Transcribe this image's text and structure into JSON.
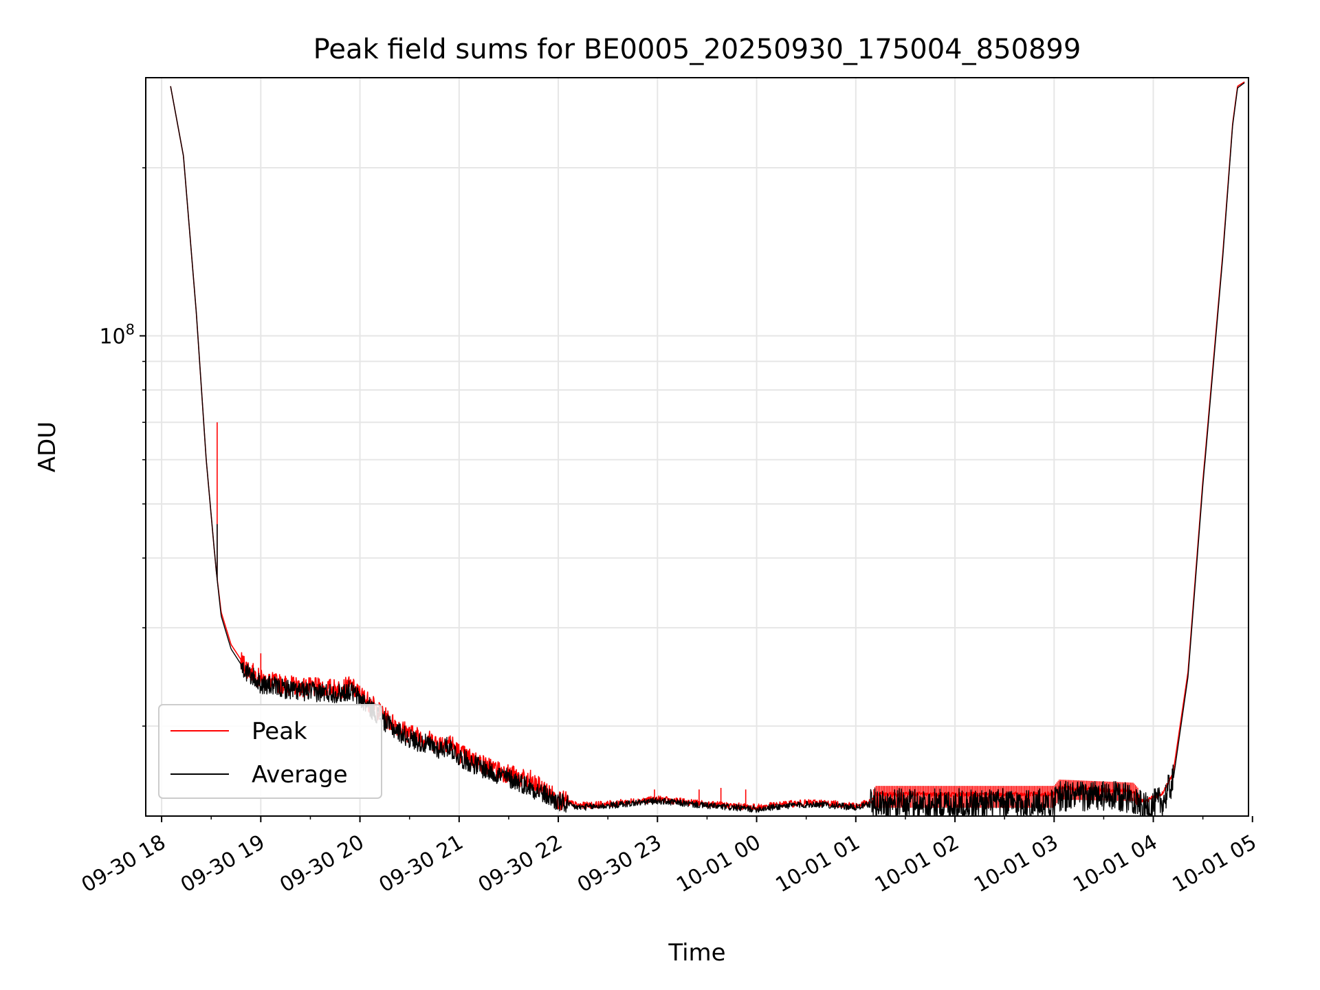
{
  "chart_data": {
    "type": "line",
    "title": "Peak field sums for BE0005_20250930_175004_850899",
    "xlabel": "Time",
    "ylabel": "ADU",
    "yscale": "log",
    "ylim": [
      13800000,
      290000000
    ],
    "xlim_hours": [
      -0.16,
      10.96
    ],
    "x_origin": "09-30 18:00",
    "grid": true,
    "legend_position": "lower-left",
    "x_ticks": [
      {
        "hour": 0,
        "label": "09-30 18"
      },
      {
        "hour": 1,
        "label": "09-30 19"
      },
      {
        "hour": 2,
        "label": "09-30 20"
      },
      {
        "hour": 3,
        "label": "09-30 21"
      },
      {
        "hour": 4,
        "label": "09-30 22"
      },
      {
        "hour": 5,
        "label": "09-30 23"
      },
      {
        "hour": 6,
        "label": "10-01 00"
      },
      {
        "hour": 7,
        "label": "10-01 01"
      },
      {
        "hour": 8,
        "label": "10-01 02"
      },
      {
        "hour": 9,
        "label": "10-01 03"
      },
      {
        "hour": 10,
        "label": "10-01 04"
      },
      {
        "hour": 11,
        "label": "10-01 05"
      }
    ],
    "y_major_ticks": [
      {
        "value": 100000000,
        "base": "10",
        "exponent": "8"
      }
    ],
    "y_minor_ticks": [
      20000000,
      30000000,
      40000000,
      50000000,
      60000000,
      70000000,
      80000000,
      90000000,
      200000000
    ],
    "series": [
      {
        "name": "Peak",
        "color": "#ff0000",
        "x": [
          0.09,
          0.22,
          0.35,
          0.45,
          0.55,
          0.6,
          0.7,
          0.85,
          1.0,
          1.2,
          1.4,
          1.6,
          1.8,
          1.9,
          2.1,
          2.3,
          2.5,
          2.8,
          2.9,
          3.0,
          3.3,
          3.6,
          3.8,
          4.0,
          4.2,
          4.5,
          5.0,
          5.5,
          6.0,
          6.3,
          6.6,
          7.0,
          7.15,
          7.2,
          8.0,
          9.0,
          9.05,
          9.8,
          9.9,
          10.1,
          10.2,
          10.35,
          10.5,
          10.7,
          10.8,
          10.85,
          10.92
        ],
        "values": [
          280000000,
          210000000,
          110000000,
          60000000,
          38000000,
          32000000,
          28000000,
          25500000,
          24200000,
          23800000,
          23500000,
          23400000,
          23300000,
          23600000,
          22000000,
          20400000,
          19400000,
          18600000,
          18800000,
          17900000,
          16900000,
          16200000,
          15600000,
          14800000,
          14400000,
          14500000,
          14800000,
          14500000,
          14300000,
          14500000,
          14600000,
          14400000,
          14600000,
          15100000,
          15100000,
          15100000,
          15500000,
          15300000,
          14600000,
          15200000,
          16500000,
          25000000,
          55000000,
          140000000,
          240000000,
          280000000,
          285000000
        ]
      },
      {
        "name": "Average",
        "color": "#000000",
        "x": [
          0.09,
          0.22,
          0.35,
          0.45,
          0.55,
          0.6,
          0.7,
          0.85,
          1.0,
          1.2,
          1.4,
          1.6,
          1.8,
          1.9,
          2.1,
          2.3,
          2.5,
          2.8,
          2.9,
          3.0,
          3.3,
          3.6,
          3.8,
          4.0,
          4.2,
          4.5,
          5.0,
          5.5,
          6.0,
          6.3,
          6.6,
          7.0,
          7.15,
          7.2,
          8.0,
          9.0,
          9.05,
          9.8,
          9.9,
          10.1,
          10.2,
          10.35,
          10.5,
          10.7,
          10.8,
          10.85,
          10.92
        ],
        "values": [
          280000000,
          210000000,
          110000000,
          60000000,
          38000000,
          31500000,
          27500000,
          25000000,
          23800000,
          23400000,
          23100000,
          23000000,
          22900000,
          23200000,
          21600000,
          20000000,
          19000000,
          18200000,
          18400000,
          17600000,
          16600000,
          15900000,
          15300000,
          14600000,
          14300000,
          14400000,
          14700000,
          14400000,
          14200000,
          14400000,
          14500000,
          14300000,
          14500000,
          14500000,
          14500000,
          14500000,
          15000000,
          14900000,
          14200000,
          14700000,
          16000000,
          24500000,
          54000000,
          138000000,
          238000000,
          278000000,
          284000000
        ]
      }
    ],
    "annotations": [
      {
        "series": "Peak",
        "hour": 0.56,
        "value": 70000000
      },
      {
        "series": "Average",
        "hour": 0.56,
        "value": 46000000
      },
      {
        "series": "Peak",
        "hour": 1.0,
        "value": 27000000
      },
      {
        "series": "Peak",
        "hour": 3.72,
        "value": 16700000
      },
      {
        "series": "Peak",
        "hour": 4.97,
        "value": 15400000
      },
      {
        "series": "Peak",
        "hour": 5.42,
        "value": 15400000
      },
      {
        "series": "Peak",
        "hour": 5.64,
        "value": 15500000
      },
      {
        "series": "Peak",
        "hour": 5.89,
        "value": 15400000
      }
    ]
  }
}
